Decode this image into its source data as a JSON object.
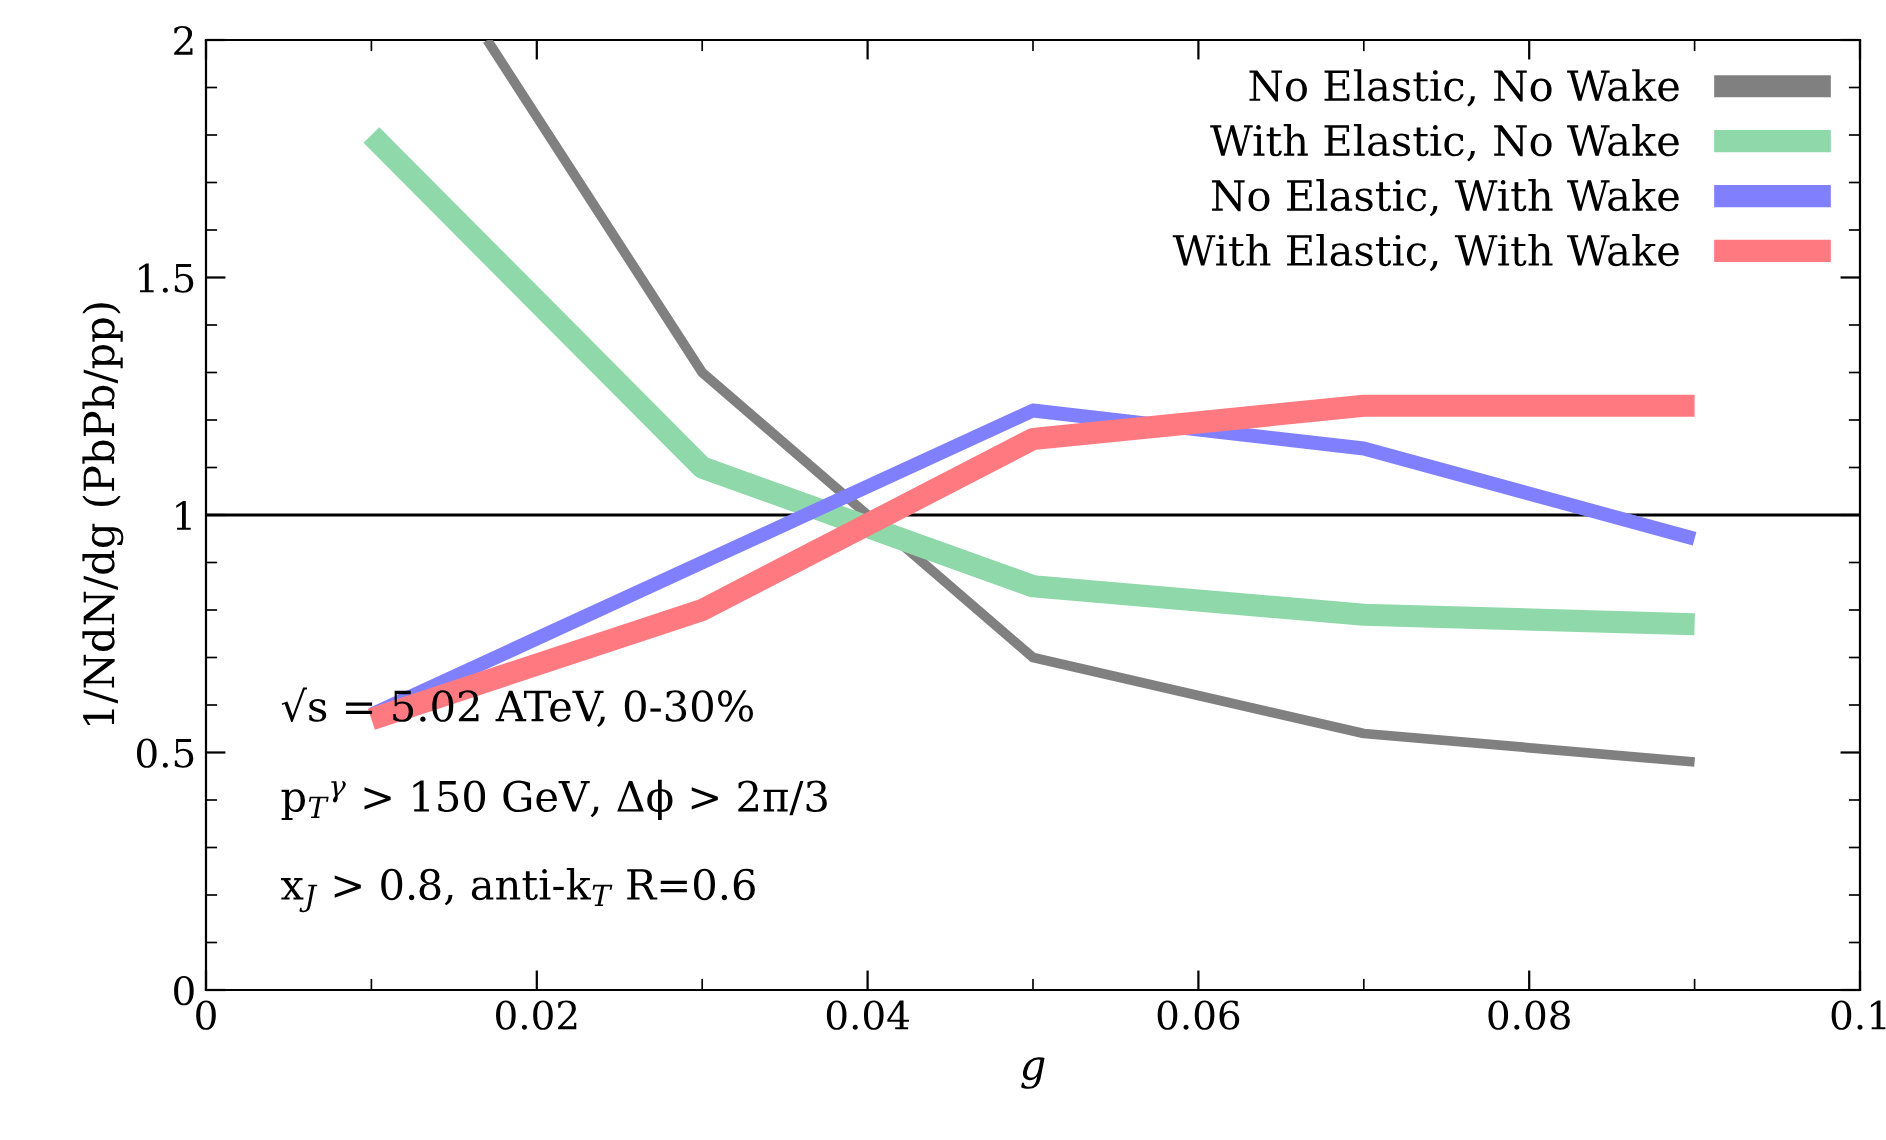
{
  "chart_data": {
    "type": "line",
    "xlabel": "g",
    "ylabel": "1/NdN/dg (PbPb/pp)",
    "x": [
      0.01,
      0.03,
      0.05,
      0.07,
      0.09
    ],
    "series": [
      {
        "name": "No Elastic, No Wake",
        "color": "#808080",
        "x": [
          0.017,
          0.03,
          0.05,
          0.07,
          0.09
        ],
        "values": [
          2.0,
          1.3,
          0.7,
          0.54,
          0.48
        ]
      },
      {
        "name": "With Elastic, No Wake",
        "color": "#8fd8aa",
        "values": [
          1.8,
          1.1,
          0.85,
          0.79,
          0.77
        ]
      },
      {
        "name": "No Elastic, With Wake",
        "color": "#8080ff",
        "values": [
          0.58,
          0.9,
          1.22,
          1.14,
          0.95
        ]
      },
      {
        "name": "With Elastic, With Wake",
        "color": "#ff7a80",
        "values": [
          0.57,
          0.8,
          1.16,
          1.23,
          1.23
        ]
      }
    ],
    "xlim": [
      0,
      0.1
    ],
    "xticks": [
      {
        "value": 0,
        "label": "0"
      },
      0.02,
      0.04,
      0.06,
      0.08,
      0.1
    ],
    "ylim": [
      0,
      2
    ],
    "yticks": [
      0,
      0.5,
      1,
      1.5,
      2
    ],
    "ref_lines": [
      {
        "axis": "y",
        "value": 1,
        "label": null,
        "color": "#000000"
      }
    ],
    "annotations": [
      "√s = 5.02 ATeV, 0-30%",
      "p$_{T}$$^{γ}$ > 150 GeV, Δϕ > 2π/3",
      "x$_{J}$ > 0.8, anti-k$_{T}$ R=0.6"
    ],
    "legend": "top right",
    "grid": false,
    "marker": "none",
    "line_style": "solid"
  }
}
